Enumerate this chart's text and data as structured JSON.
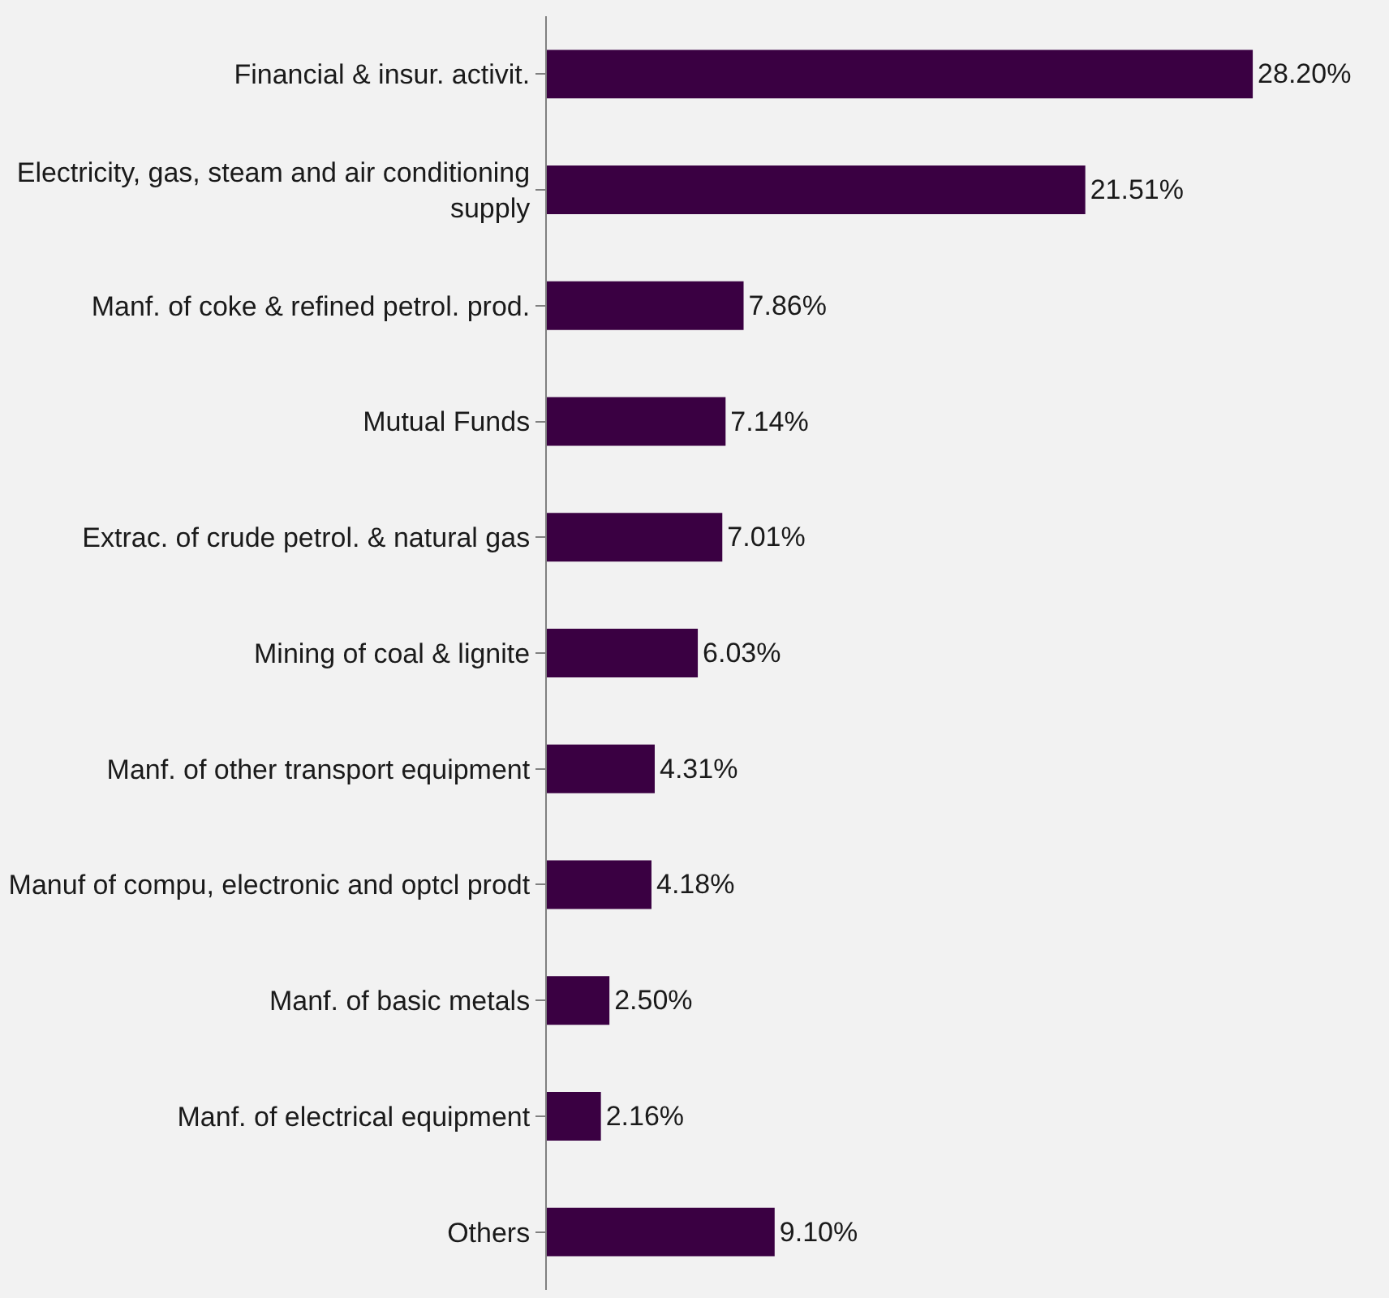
{
  "chart_data": {
    "type": "bar",
    "orientation": "horizontal",
    "categories": [
      "Financial & insur. activit.",
      "Electricity, gas, steam and air conditioning supply",
      "Manf. of coke & refined petrol. prod.",
      "Mutual Funds",
      "Extrac. of crude petrol. & natural gas",
      "Mining of coal & lignite",
      "Manf. of other transport equipment",
      "Manuf of compu, electronic and optcl prodt",
      "Manf. of basic metals",
      "Manf. of electrical equipment",
      "Others"
    ],
    "values": [
      28.2,
      21.51,
      7.86,
      7.14,
      7.01,
      6.03,
      4.31,
      4.18,
      2.5,
      2.16,
      9.1
    ],
    "value_labels": [
      "28.20%",
      "21.51%",
      "7.86%",
      "7.14%",
      "7.01%",
      "6.03%",
      "4.31%",
      "4.18%",
      "2.50%",
      "2.16%",
      "9.10%"
    ],
    "color": "#3a0042",
    "grid": false,
    "legend": false
  }
}
